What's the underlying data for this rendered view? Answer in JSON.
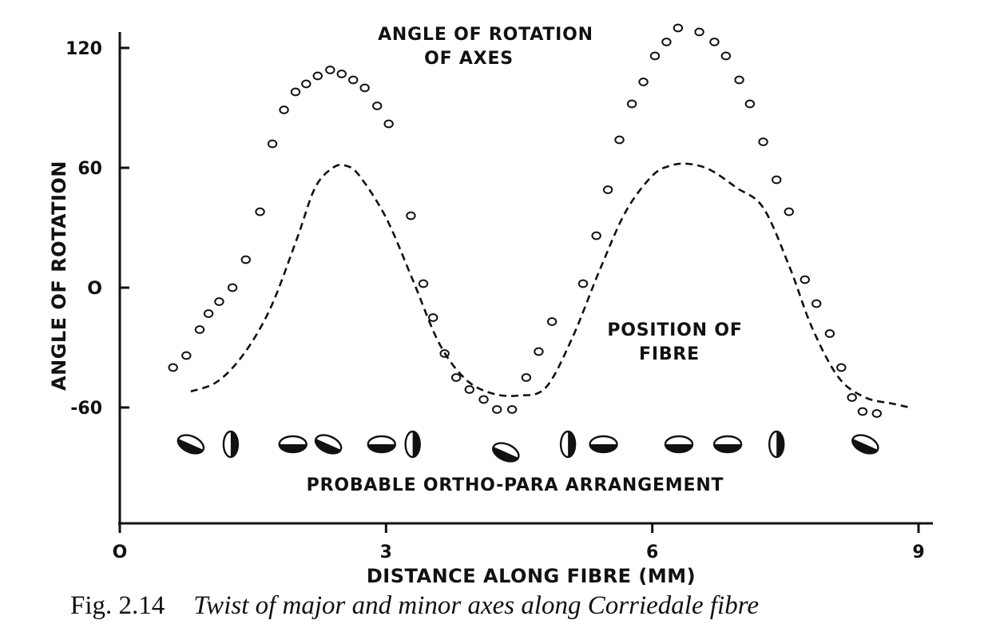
{
  "chart_data": {
    "type": "scatter",
    "title": "",
    "xlabel": "DISTANCE ALONG FIBRE (MM)",
    "ylabel": "ANGLE OF ROTATION",
    "xlim": [
      0,
      9
    ],
    "ylim": [
      -90,
      120
    ],
    "x_ticks": [
      0,
      3,
      6,
      9
    ],
    "x_tick_labels": [
      "O",
      "3",
      "6",
      "9"
    ],
    "y_ticks": [
      120,
      60,
      0,
      -60
    ],
    "y_tick_labels": [
      "120",
      "60",
      "O",
      "-60"
    ],
    "grid": false,
    "series": [
      {
        "name": "ANGLE OF ROTATION OF AXES",
        "style": "open-circles",
        "points": [
          [
            0.6,
            -40
          ],
          [
            0.75,
            -34
          ],
          [
            0.9,
            -21
          ],
          [
            1.0,
            -13
          ],
          [
            1.12,
            -7
          ],
          [
            1.27,
            0
          ],
          [
            1.42,
            14
          ],
          [
            1.58,
            38
          ],
          [
            1.72,
            72
          ],
          [
            1.85,
            89
          ],
          [
            1.98,
            98
          ],
          [
            2.1,
            102
          ],
          [
            2.23,
            106
          ],
          [
            2.37,
            109
          ],
          [
            2.5,
            107
          ],
          [
            2.63,
            104
          ],
          [
            2.76,
            100
          ],
          [
            2.9,
            91
          ],
          [
            3.03,
            82
          ],
          [
            3.28,
            36
          ],
          [
            3.42,
            2
          ],
          [
            3.53,
            -15
          ],
          [
            3.66,
            -33
          ],
          [
            3.79,
            -45
          ],
          [
            3.94,
            -51
          ],
          [
            4.1,
            -56
          ],
          [
            4.25,
            -61
          ],
          [
            4.42,
            -61
          ],
          [
            4.58,
            -45
          ],
          [
            4.72,
            -32
          ],
          [
            4.87,
            -17
          ],
          [
            5.22,
            2
          ],
          [
            5.37,
            26
          ],
          [
            5.5,
            49
          ],
          [
            5.63,
            74
          ],
          [
            5.77,
            92
          ],
          [
            5.9,
            103
          ],
          [
            6.03,
            116
          ],
          [
            6.16,
            123
          ],
          [
            6.29,
            130
          ],
          [
            6.53,
            128
          ],
          [
            6.7,
            123
          ],
          [
            6.83,
            116
          ],
          [
            6.98,
            104
          ],
          [
            7.1,
            92
          ],
          [
            7.25,
            73
          ],
          [
            7.4,
            54
          ],
          [
            7.54,
            38
          ],
          [
            7.72,
            4
          ],
          [
            7.85,
            -8
          ],
          [
            8.0,
            -23
          ],
          [
            8.13,
            -40
          ],
          [
            8.25,
            -55
          ],
          [
            8.37,
            -62
          ],
          [
            8.53,
            -63
          ]
        ]
      },
      {
        "name": "POSITION OF FIBRE",
        "style": "dashed-line",
        "points": [
          [
            0.8,
            -52
          ],
          [
            1.1,
            -47
          ],
          [
            1.4,
            -33
          ],
          [
            1.7,
            -10
          ],
          [
            2.0,
            25
          ],
          [
            2.2,
            50
          ],
          [
            2.4,
            60
          ],
          [
            2.55,
            61
          ],
          [
            2.7,
            56
          ],
          [
            3.0,
            35
          ],
          [
            3.3,
            4
          ],
          [
            3.6,
            -28
          ],
          [
            3.9,
            -46
          ],
          [
            4.2,
            -53
          ],
          [
            4.5,
            -54
          ],
          [
            4.8,
            -50
          ],
          [
            5.1,
            -25
          ],
          [
            5.4,
            8
          ],
          [
            5.7,
            38
          ],
          [
            6.0,
            56
          ],
          [
            6.2,
            61
          ],
          [
            6.4,
            62
          ],
          [
            6.65,
            59
          ],
          [
            6.95,
            50
          ],
          [
            7.25,
            40
          ],
          [
            7.55,
            10
          ],
          [
            7.8,
            -20
          ],
          [
            8.1,
            -45
          ],
          [
            8.4,
            -55
          ],
          [
            8.7,
            -58
          ],
          [
            8.9,
            -60
          ]
        ]
      }
    ],
    "cross_sections": {
      "label": "PROBABLE ORTHO-PARA ARRANGEMENT",
      "items": [
        {
          "x": 0.8,
          "shape": "wide-tilted"
        },
        {
          "x": 1.25,
          "shape": "narrow-half"
        },
        {
          "x": 1.95,
          "shape": "wide-flat"
        },
        {
          "x": 2.35,
          "shape": "wide-tilted"
        },
        {
          "x": 2.95,
          "shape": "wide-flat"
        },
        {
          "x": 3.3,
          "shape": "narrow-half"
        },
        {
          "x": 4.35,
          "shape": "wide-tilted"
        },
        {
          "x": 5.05,
          "shape": "narrow-half"
        },
        {
          "x": 5.45,
          "shape": "wide-flat"
        },
        {
          "x": 6.3,
          "shape": "wide-flat"
        },
        {
          "x": 6.85,
          "shape": "wide-flat"
        },
        {
          "x": 7.4,
          "shape": "narrow-half"
        },
        {
          "x": 8.4,
          "shape": "wide-tilted"
        }
      ]
    },
    "annotations": [
      {
        "text": [
          "ANGLE OF ROTATION",
          "OF AXES"
        ]
      },
      {
        "text": [
          "POSITION OF",
          "FIBRE"
        ]
      }
    ]
  },
  "caption": {
    "number": "Fig. 2.14",
    "text": "Twist of major and minor axes along Corriedale fibre"
  }
}
